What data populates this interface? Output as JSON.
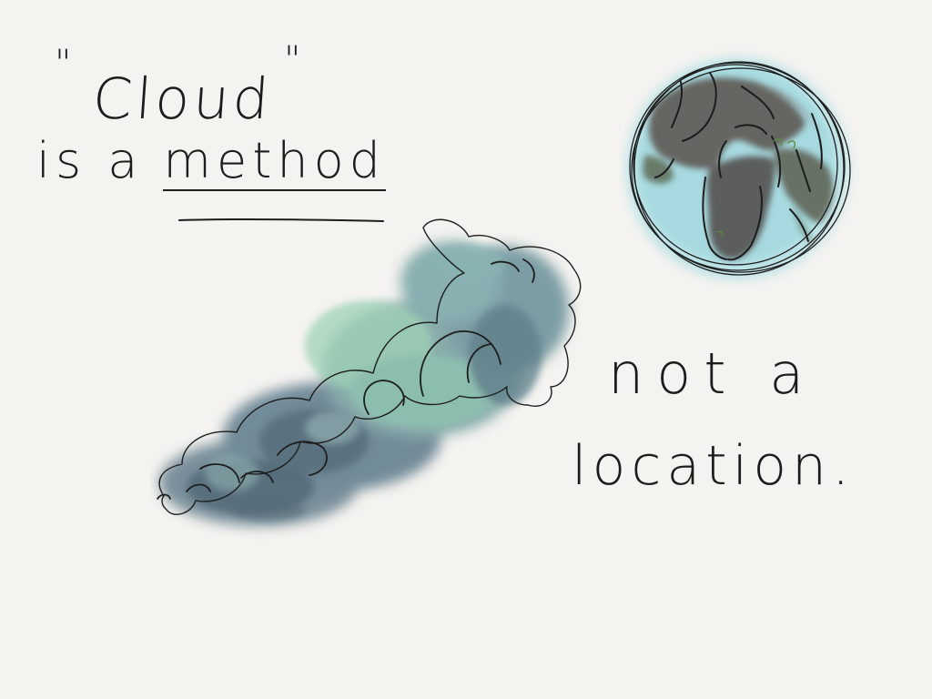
{
  "sketch": {
    "quote_open": "\"",
    "title_word": "Cloud",
    "quote_close": "\"",
    "line2_prefix": "is a",
    "line2_emphasis": "method",
    "line3": "not a",
    "line4": "location."
  },
  "colors": {
    "background": "#f4f3f0",
    "ink": "#1c1c1c",
    "cloud_dark": "#556b78",
    "cloud_mid": "#6f8f99",
    "cloud_green": "#8fcaa9",
    "globe_ocean": "#9fd6dc",
    "globe_land": "#4e4a45"
  },
  "icons": {
    "cloud": "cloud-icon",
    "globe": "globe-icon"
  }
}
